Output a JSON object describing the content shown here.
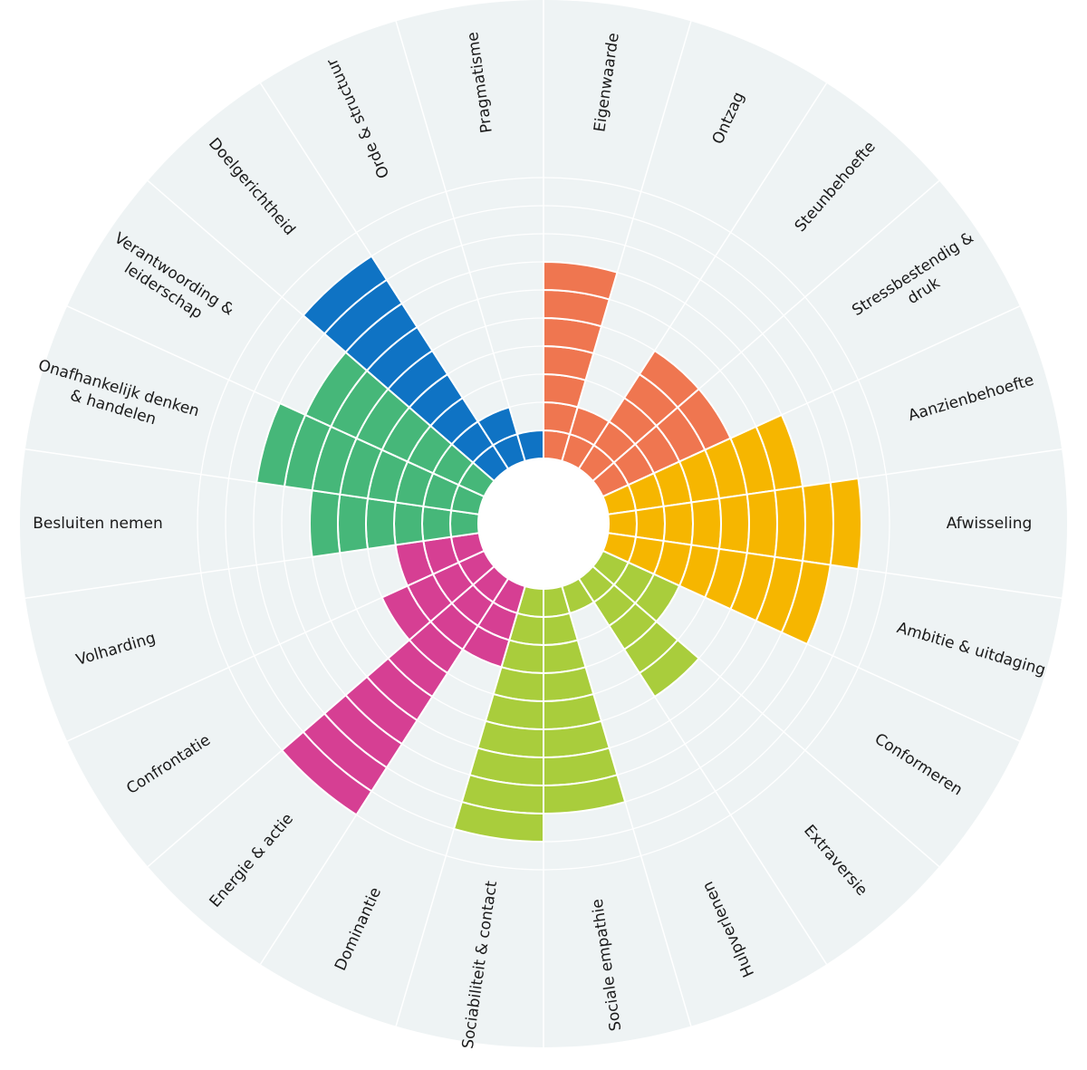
{
  "chart_data": {
    "type": "polar-bar",
    "title": "",
    "scale_max": 10,
    "grid": true,
    "colors": {
      "background_disc": "#eef3f4",
      "grid_lines": "#ffffff",
      "center_hole": "#ffffff",
      "segment_separator": "#ffffff"
    },
    "categories": [
      {
        "label_lines": [
          "Eigenwaarde"
        ],
        "value": 7,
        "color": "#ef7650"
      },
      {
        "label_lines": [
          "Ontzag"
        ],
        "value": 2,
        "color": "#ef7650"
      },
      {
        "label_lines": [
          "Steunbehoefte"
        ],
        "value": 5,
        "color": "#ef7650"
      },
      {
        "label_lines": [
          "Stressbestendig &",
          "druk"
        ],
        "value": 5,
        "color": "#ef7650"
      },
      {
        "label_lines": [
          "Aanzienbehoefte"
        ],
        "value": 7,
        "color": "#f6b600"
      },
      {
        "label_lines": [
          "Afwisseling"
        ],
        "value": 9,
        "color": "#f6b600"
      },
      {
        "label_lines": [
          "Ambitie & uitdaging"
        ],
        "value": 8,
        "color": "#f6b600"
      },
      {
        "label_lines": [
          "Conformeren"
        ],
        "value": 3,
        "color": "#a9cd3c"
      },
      {
        "label_lines": [
          "Extraversie"
        ],
        "value": 5,
        "color": "#a9cd3c"
      },
      {
        "label_lines": [
          "Hulpverlenen"
        ],
        "value": 1,
        "color": "#a9cd3c"
      },
      {
        "label_lines": [
          "Sociale empathie"
        ],
        "value": 8,
        "color": "#a9cd3c"
      },
      {
        "label_lines": [
          "Sociabiliteit & contact"
        ],
        "value": 9,
        "color": "#a9cd3c"
      },
      {
        "label_lines": [
          "Dominantie"
        ],
        "value": 3,
        "color": "#d63f93"
      },
      {
        "label_lines": [
          "Energie & actie"
        ],
        "value": 10,
        "color": "#d63f93"
      },
      {
        "label_lines": [
          "Confrontatie"
        ],
        "value": 4,
        "color": "#d63f93"
      },
      {
        "label_lines": [
          "Volharding"
        ],
        "value": 3,
        "color": "#d63f93"
      },
      {
        "label_lines": [
          "Besluiten nemen"
        ],
        "value": 6,
        "color": "#46b779"
      },
      {
        "label_lines": [
          "Onafhankelijk denken",
          "& handelen"
        ],
        "value": 8,
        "color": "#46b779"
      },
      {
        "label_lines": [
          "Verantwoording &",
          "leiderschap"
        ],
        "value": 7,
        "color": "#46b779"
      },
      {
        "label_lines": [
          "Doelgerichtheid"
        ],
        "value": 9,
        "color": "#0f73c4"
      },
      {
        "label_lines": [
          "Orde & structuur"
        ],
        "value": 2,
        "color": "#0f73c4"
      },
      {
        "label_lines": [
          "Pragmatisme"
        ],
        "value": 1,
        "color": "#0f73c4"
      }
    ]
  }
}
